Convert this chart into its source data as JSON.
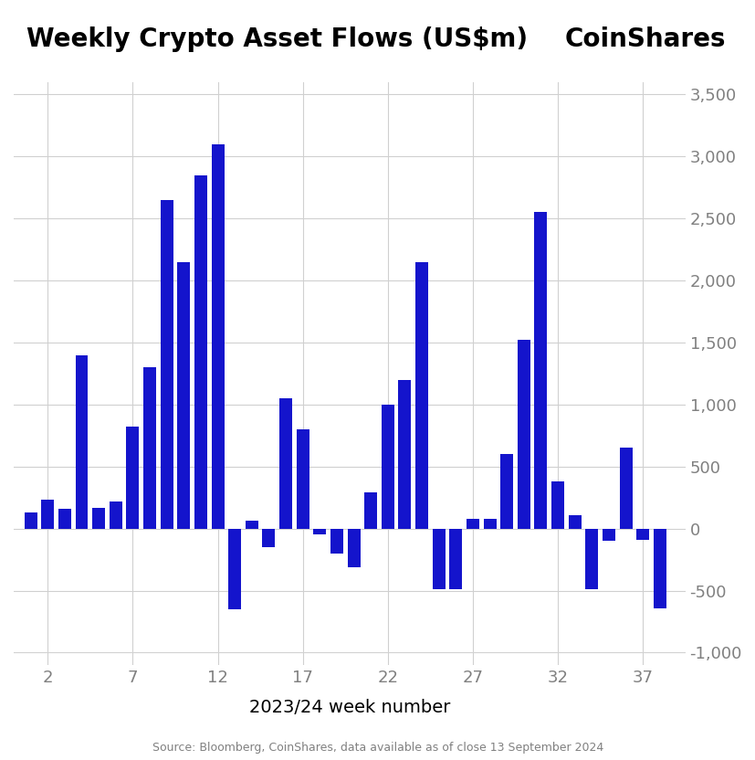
{
  "title": "Weekly Crypto Asset Flows (US$m)",
  "coinshares_label": "CoinShares",
  "xlabel": "2023/24 week number",
  "source_text": "Source: Bloomberg, CoinShares, data available as of close 13 September 2024",
  "bar_color": "#1414CC",
  "background_color": "#ffffff",
  "ylim_bottom": -1100,
  "ylim_top": 3600,
  "yticks": [
    -1000,
    -500,
    0,
    500,
    1000,
    1500,
    2000,
    2500,
    3000,
    3500
  ],
  "xlim_left": 0.0,
  "xlim_right": 39.5,
  "xticks": [
    2,
    7,
    12,
    17,
    22,
    27,
    32,
    37
  ],
  "weeks": [
    1,
    2,
    3,
    4,
    5,
    6,
    7,
    8,
    9,
    10,
    11,
    12,
    13,
    14,
    15,
    16,
    17,
    18,
    19,
    20,
    21,
    22,
    23,
    24,
    25,
    26,
    27,
    28,
    29,
    30,
    31,
    32,
    33,
    34,
    35,
    36,
    37,
    38
  ],
  "values": [
    130,
    230,
    160,
    1400,
    170,
    220,
    820,
    1300,
    2650,
    2150,
    2850,
    3100,
    -650,
    60,
    -150,
    1050,
    800,
    -50,
    -200,
    -310,
    290,
    1000,
    1200,
    2150,
    -490,
    -490,
    80,
    80,
    600,
    1520,
    2550,
    380,
    110,
    -490,
    -100,
    650,
    -90,
    -640
  ],
  "bar_width": 0.75,
  "title_fontsize": 20,
  "coinshares_fontsize": 20,
  "axis_label_fontsize": 14,
  "tick_fontsize": 13,
  "source_fontsize": 9,
  "grid_color": "#d0d0d0",
  "tick_color": "#808080",
  "xlabel_color": "#000000"
}
